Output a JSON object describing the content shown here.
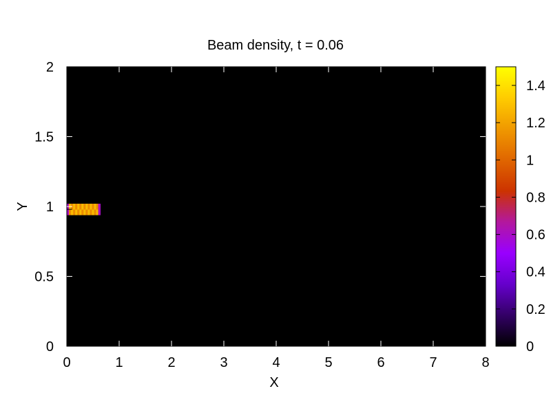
{
  "chart_data": {
    "type": "heatmap",
    "title": "Beam density, t = 0.06",
    "xlabel": "X",
    "ylabel": "Y",
    "xlim": [
      0,
      8
    ],
    "ylim": [
      0,
      2
    ],
    "xticks": [
      0,
      1,
      2,
      3,
      4,
      5,
      6,
      7,
      8
    ],
    "yticks": [
      0,
      0.5,
      1,
      1.5,
      2
    ],
    "xtick_labels": [
      "0",
      "1",
      "2",
      "3",
      "4",
      "5",
      "6",
      "7",
      "8"
    ],
    "ytick_labels": [
      "0",
      "0.5",
      "1",
      "1.5",
      "2"
    ],
    "background_value": 0,
    "colorbar": {
      "range": [
        0,
        1.5
      ],
      "ticks": [
        0,
        0.2,
        0.4,
        0.6,
        0.8,
        1,
        1.2,
        1.4
      ],
      "tick_labels": [
        "0",
        "0.2",
        "0.4",
        "0.6",
        "0.8",
        "1",
        "1.2",
        "1.4"
      ],
      "colormap": [
        "#000000",
        "#330066",
        "#6600cc",
        "#9900ff",
        "#b3189e",
        "#cc3300",
        "#e06600",
        "#f09900",
        "#ffcc00",
        "#ffff00"
      ]
    },
    "beam": {
      "x_range": [
        0.0,
        0.64
      ],
      "y_range": [
        0.94,
        1.02
      ],
      "cell_size": 0.04,
      "peak_value": 1.5
    }
  }
}
